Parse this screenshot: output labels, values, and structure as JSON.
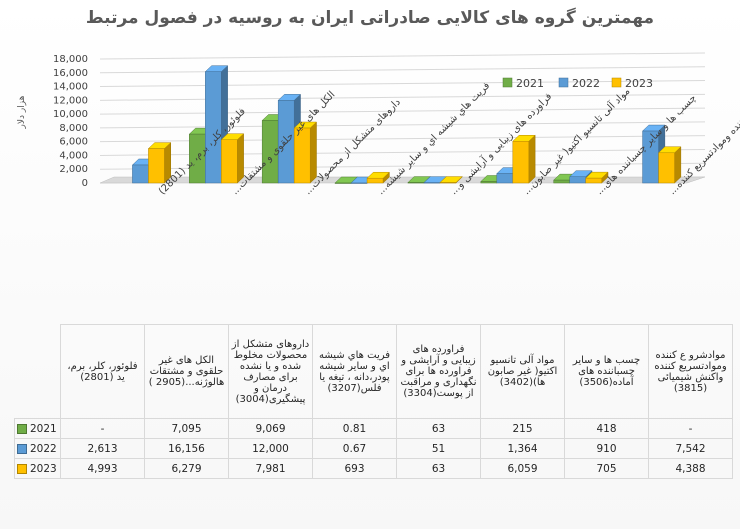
{
  "title": "مهمترین گروه های کالایی صادراتی ایران به روسیه در فصول مرتبط",
  "chart_data": {
    "type": "bar",
    "title": "مهمترین گروه های کالایی صادراتی ایران به روسیه در فصول مرتبط",
    "ylabel": "هزار دلار",
    "ylim": [
      0,
      18000
    ],
    "yticks": [
      "0",
      "2,000",
      "4,000",
      "6,000",
      "8,000",
      "10,000",
      "12,000",
      "14,000",
      "16,000",
      "18,000"
    ],
    "legend_position": "top-right",
    "grid": true,
    "categories": [
      "فلوئور، کلر، برم، ید (2801)",
      "الکل های غیر حلقوی و مشتقات هالوژنه...(2905 )",
      "داروهای متشکل از محصولات مخلوط شده و یا نشده برای مصارف درمان و پیشگیری(3004)",
      "فریت هاي شیشه اي و سایر شیشه پودر،دانه ، تیغه یا فلس(3207)",
      "فراورده های زیبایی و آرایشی و فراورده ها برای نگهداری و مراقبت از پوست(3304)",
      "مواد آلی تانسیو اکتیو( غیر صابون ها)(3402)",
      "چسب ها و سایر چسباننده های آماده(3506)",
      "موادشرو ع کننده وموادتسریع کننده واکنش شیمیائی (3815)"
    ],
    "axis_labels": [
      "فلوئور، کلر، برم، ید (2801)",
      "الکل های غیر حلقوی و مشتقات...",
      "داروهای متشکل از محصولات...",
      "فریت هاي شیشه اي و سایر شیشه...",
      "فراورده های زیبایی و آرایشی و...",
      "مواد آلی تانسیو اکتیو( غیر صابون...",
      "چسب ها و سایر چسباننده های...",
      "موادشرو ع کننده وموادتسریع کننده..."
    ],
    "series": [
      {
        "name": "2021",
        "color": "#70ad47",
        "values": [
          null,
          7095,
          9069,
          0.81,
          63,
          215,
          418,
          null
        ],
        "display": [
          "-",
          "7,095",
          "9,069",
          "0.81",
          "63",
          "215",
          "418",
          "-"
        ]
      },
      {
        "name": "2022",
        "color": "#5b9bd5",
        "values": [
          2613,
          16156,
          12000,
          0.67,
          51,
          1364,
          910,
          7542
        ],
        "display": [
          "2,613",
          "16,156",
          "12,000",
          "0.67",
          "51",
          "1,364",
          "910",
          "7,542"
        ]
      },
      {
        "name": "2023",
        "color": "#ffc000",
        "values": [
          4993,
          6279,
          7981,
          693,
          63,
          6059,
          705,
          4388
        ],
        "display": [
          "4,993",
          "6,279",
          "7,981",
          "693",
          "63",
          "6,059",
          "705",
          "4,388"
        ]
      }
    ]
  }
}
